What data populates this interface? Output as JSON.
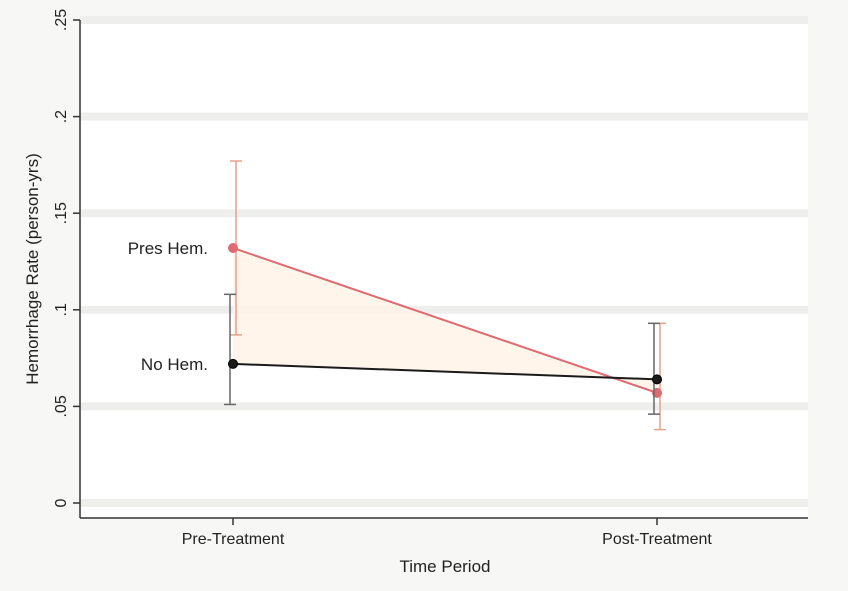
{
  "chart_data": {
    "type": "line",
    "title": "",
    "xlabel": "Time Period",
    "ylabel": "Hemorrhage Rate (person-yrs)",
    "categories": [
      "Pre-Treatment",
      "Post-Treatment"
    ],
    "ylim": [
      0,
      0.25
    ],
    "yticks": [
      {
        "value": 0,
        "label": "0"
      },
      {
        "value": 0.05,
        "label": ".05"
      },
      {
        "value": 0.1,
        "label": ".1"
      },
      {
        "value": 0.15,
        "label": ".15"
      },
      {
        "value": 0.2,
        "label": ".2"
      },
      {
        "value": 0.25,
        "label": ".25"
      }
    ],
    "grid": true,
    "legend": "none",
    "series": [
      {
        "name": "Pres Hem.",
        "color": "#e06a72",
        "values": [
          0.132,
          0.057
        ],
        "ci_lower": [
          0.087,
          0.038
        ],
        "ci_upper": [
          0.177,
          0.093
        ]
      },
      {
        "name": "No Hem.",
        "color": "#1a1a1a",
        "values": [
          0.072,
          0.064
        ],
        "ci_lower": [
          0.051,
          0.046
        ],
        "ci_upper": [
          0.108,
          0.093
        ]
      }
    ]
  }
}
